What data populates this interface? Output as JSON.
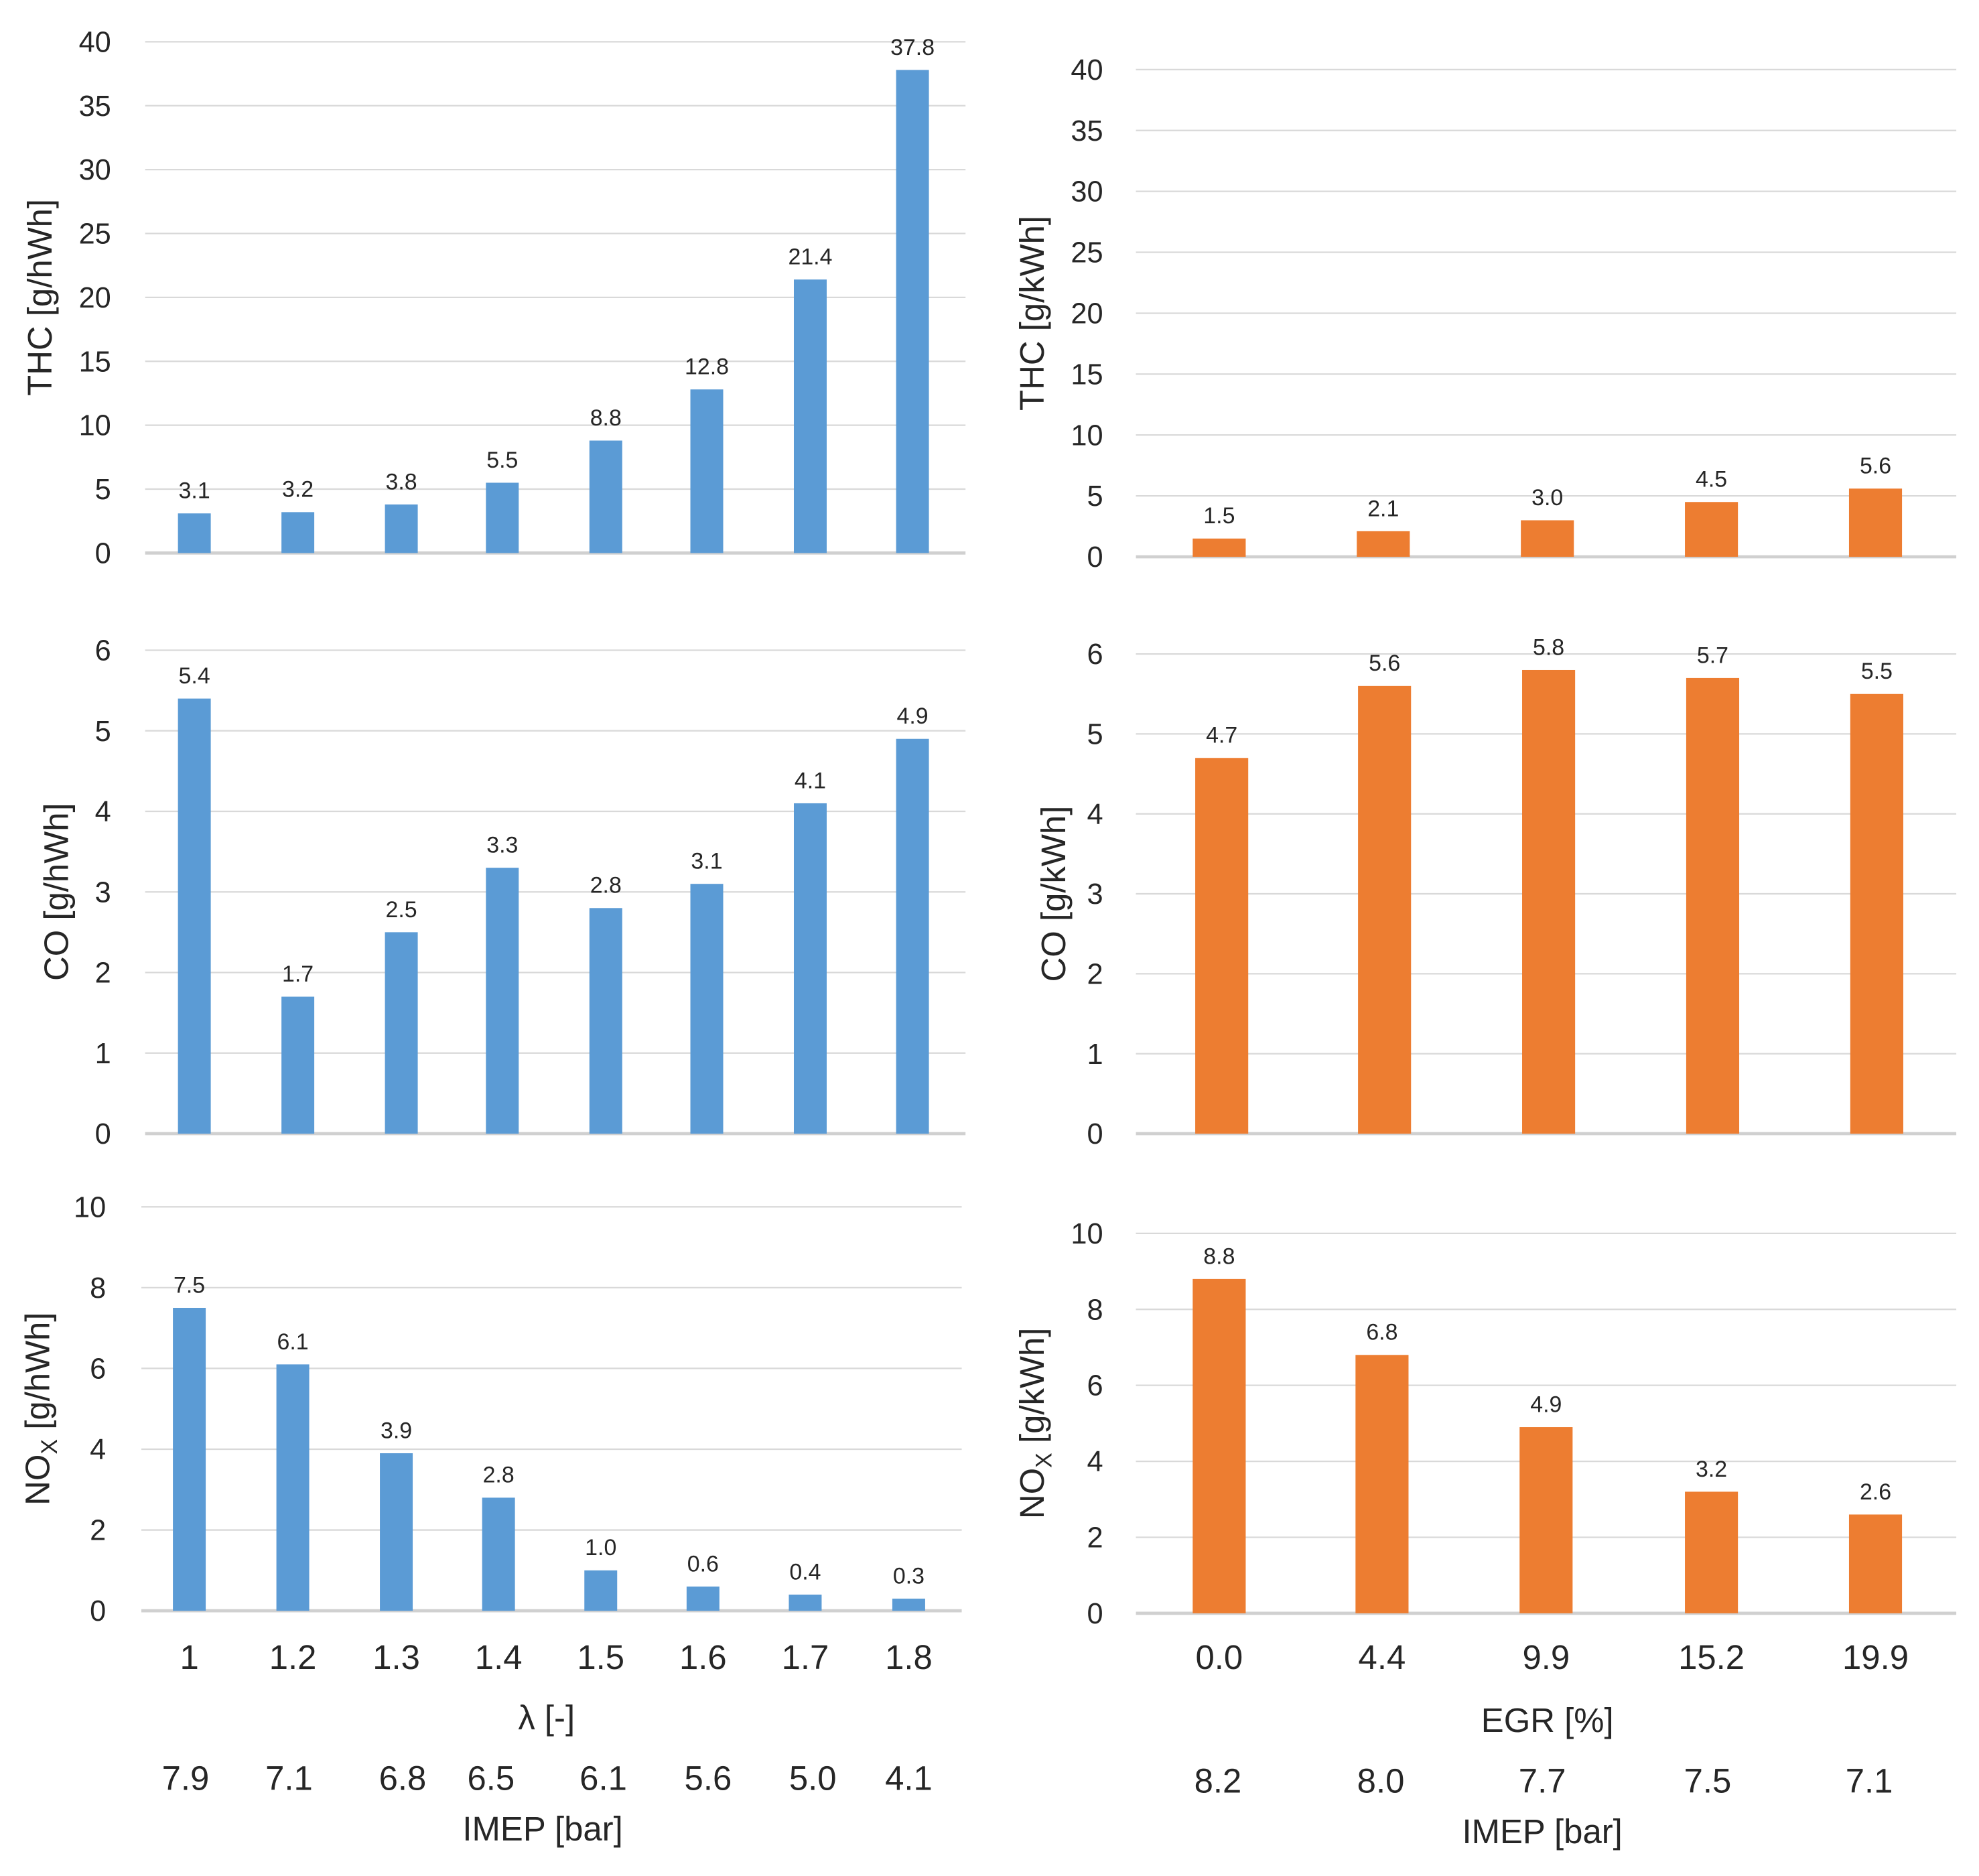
{
  "colors": {
    "left": "#5b9bd5",
    "right": "#ed7d31"
  },
  "chart_data": [
    {
      "type": "bar",
      "id": "thc-lambda",
      "ylabel": "THC [g/hWh]",
      "ylim": [
        0,
        40
      ],
      "ystep": 5,
      "categories": [
        "1",
        "1.2",
        "1.3",
        "1.4",
        "1.5",
        "1.6",
        "1.7",
        "1.8"
      ],
      "values": [
        3.1,
        3.2,
        3.8,
        5.5,
        8.8,
        12.8,
        21.4,
        37.8
      ],
      "labels": [
        "3.1",
        "3.2",
        "3.8",
        "5.5",
        "8.8",
        "12.8",
        "21.4",
        "37.8"
      ]
    },
    {
      "type": "bar",
      "id": "co-lambda",
      "ylabel": "CO [g/hWh]",
      "ylim": [
        0,
        6
      ],
      "ystep": 1,
      "categories": [
        "1",
        "1.2",
        "1.3",
        "1.4",
        "1.5",
        "1.6",
        "1.7",
        "1.8"
      ],
      "values": [
        5.4,
        1.7,
        2.5,
        3.3,
        2.8,
        3.1,
        4.1,
        4.9
      ],
      "labels": [
        "5.4",
        "1.7",
        "2.5",
        "3.3",
        "2.8",
        "3.1",
        "4.1",
        "4.9"
      ]
    },
    {
      "type": "bar",
      "id": "nox-lambda",
      "ylabel": "NOX [g/hWh]",
      "ylim": [
        0,
        10
      ],
      "ystep": 2,
      "categories": [
        "1",
        "1.2",
        "1.3",
        "1.4",
        "1.5",
        "1.6",
        "1.7",
        "1.8"
      ],
      "values": [
        7.5,
        6.1,
        3.9,
        2.8,
        1.0,
        0.6,
        0.4,
        0.3
      ],
      "labels": [
        "7.5",
        "6.1",
        "3.9",
        "2.8",
        "1.0",
        "0.6",
        "0.4",
        "0.3"
      ],
      "xlabel": "λ [-]",
      "secondary_axis": {
        "label": "IMEP [bar]",
        "values": [
          "7.9",
          "7.1",
          "6.8",
          "6.5",
          "6.1",
          "5.6",
          "5.0",
          "4.1"
        ]
      }
    },
    {
      "type": "bar",
      "id": "thc-egr",
      "ylabel": "THC [g/kWh]",
      "ylim": [
        0,
        40
      ],
      "ystep": 5,
      "categories": [
        "0.0",
        "4.4",
        "9.9",
        "15.2",
        "19.9"
      ],
      "values": [
        1.5,
        2.1,
        3.0,
        4.5,
        5.6
      ],
      "labels": [
        "1.5",
        "2.1",
        "3.0",
        "4.5",
        "5.6"
      ]
    },
    {
      "type": "bar",
      "id": "co-egr",
      "ylabel": "CO [g/kWh]",
      "ylim": [
        0,
        6
      ],
      "ystep": 1,
      "categories": [
        "0.0",
        "4.4",
        "9.9",
        "15.2",
        "19.9"
      ],
      "values": [
        4.7,
        5.6,
        5.8,
        5.7,
        5.5
      ],
      "labels": [
        "4.7",
        "5.6",
        "5.8",
        "5.7",
        "5.5"
      ]
    },
    {
      "type": "bar",
      "id": "nox-egr",
      "ylabel": "NOX [g/kWh]",
      "ylim": [
        0,
        10
      ],
      "ystep": 2,
      "categories": [
        "0.0",
        "4.4",
        "9.9",
        "15.2",
        "19.9"
      ],
      "values": [
        8.8,
        6.8,
        4.9,
        3.2,
        2.6
      ],
      "labels": [
        "8.8",
        "6.8",
        "4.9",
        "3.2",
        "2.6"
      ],
      "xlabel": "EGR [%]",
      "secondary_axis": {
        "label": "IMEP [bar]",
        "values": [
          "8.2",
          "8.0",
          "7.7",
          "7.5",
          "7.1"
        ]
      }
    }
  ]
}
